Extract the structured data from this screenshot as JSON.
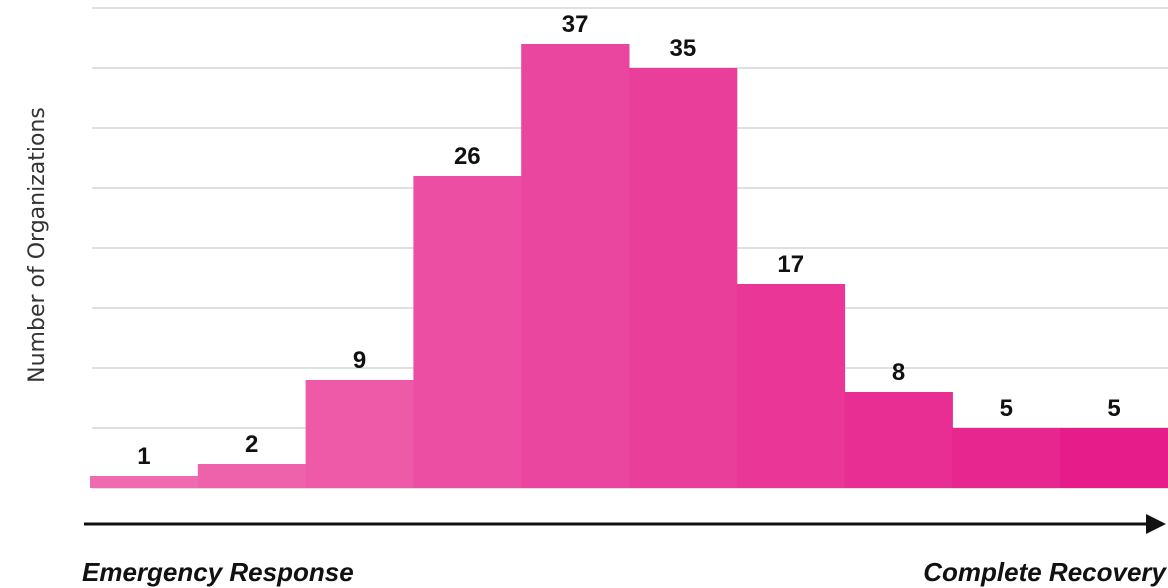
{
  "chart_data": {
    "type": "bar",
    "title": "",
    "ylabel": "Number of Organizations",
    "xlabel": "",
    "x_start_label": "Emergency Response",
    "x_end_label": "Complete Recovery",
    "categories": [
      "",
      "",
      "",
      "",
      "",
      "",
      "",
      "",
      "",
      ""
    ],
    "values": [
      1,
      2,
      9,
      26,
      37,
      35,
      17,
      8,
      5,
      5
    ],
    "ylim": [
      0,
      40
    ],
    "grid": true,
    "colors": [
      "#ef6aaf",
      "#ee62ab",
      "#ee5aa8",
      "#ec4ea3",
      "#eb469f",
      "#ea3e9b",
      "#e93697",
      "#e82e93",
      "#e7268f",
      "#e61c8a"
    ]
  }
}
